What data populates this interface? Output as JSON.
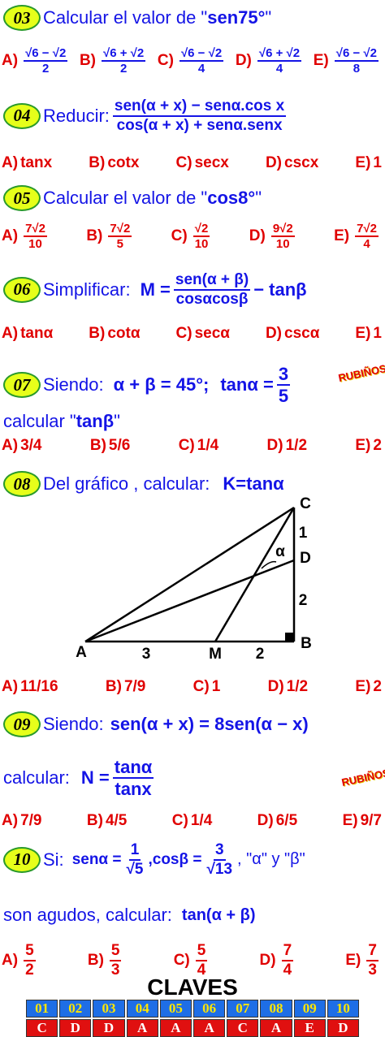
{
  "problems": [
    {
      "number": "03",
      "prompt": [
        "Calcular el valor de \"",
        "sen75°",
        "\""
      ],
      "options": [
        {
          "label": "A)",
          "num": "√6 − √2",
          "den": "2"
        },
        {
          "label": "B)",
          "num": "√6 + √2",
          "den": "2"
        },
        {
          "label": "C)",
          "num": "√6 − √2",
          "den": "4"
        },
        {
          "label": "D)",
          "num": "√6 + √2",
          "den": "4"
        },
        {
          "label": "E)",
          "num": "√6 − √2",
          "den": "8"
        }
      ]
    },
    {
      "number": "04",
      "prompt": [
        "Reducir:",
        "sen(α + x) − senα.cos x",
        "cos(α + x) + senα.senx"
      ],
      "options": [
        {
          "label": "A)",
          "text": "tanx"
        },
        {
          "label": "B)",
          "text": "cotx"
        },
        {
          "label": "C)",
          "text": "secx"
        },
        {
          "label": "D)",
          "text": "cscx"
        },
        {
          "label": "E)",
          "text": "1"
        }
      ]
    },
    {
      "number": "05",
      "prompt": [
        "Calcular el valor de \"",
        "cos8°",
        "\""
      ],
      "options": [
        {
          "label": "A)",
          "num": "7√2",
          "den": "10"
        },
        {
          "label": "B)",
          "num": "7√2",
          "den": "5"
        },
        {
          "label": "C)",
          "num": "√2",
          "den": "10"
        },
        {
          "label": "D)",
          "num": "9√2",
          "den": "10"
        },
        {
          "label": "E)",
          "num": "7√2",
          "den": "4"
        }
      ]
    },
    {
      "number": "06",
      "prompt": [
        "Simplificar:",
        "M =",
        "sen(α + β)",
        "cosαcosβ",
        "− tanβ"
      ],
      "options": [
        {
          "label": "A)",
          "text": "tanα"
        },
        {
          "label": "B)",
          "text": "cotα"
        },
        {
          "label": "C)",
          "text": "secα"
        },
        {
          "label": "D)",
          "text": "cscα"
        },
        {
          "label": "E)",
          "text": "1"
        }
      ]
    },
    {
      "number": "07",
      "prompt": [
        "Siendo:",
        "α + β = 45°;",
        "tanα =",
        "3",
        "5",
        "calcular \"",
        "tanβ",
        "\""
      ],
      "options": [
        {
          "label": "A)",
          "text": "3/4"
        },
        {
          "label": "B)",
          "text": "5/6"
        },
        {
          "label": "C)",
          "text": "1/4"
        },
        {
          "label": "D)",
          "text": "1/2"
        },
        {
          "label": "E)",
          "text": "2"
        }
      ]
    },
    {
      "number": "08",
      "prompt": [
        "Del gráfico , calcular:",
        "K=tanα"
      ],
      "diagram": {
        "points": [
          "A",
          "M",
          "B",
          "C",
          "D"
        ],
        "lengths": [
          "3",
          "2",
          "1",
          "2"
        ],
        "angle": "α"
      },
      "options": [
        {
          "label": "A)",
          "text": "11/16"
        },
        {
          "label": "B)",
          "text": "7/9"
        },
        {
          "label": "C)",
          "text": "1"
        },
        {
          "label": "D)",
          "text": "1/2"
        },
        {
          "label": "E)",
          "text": "2"
        }
      ]
    },
    {
      "number": "09",
      "prompt": [
        "Siendo:",
        "sen(α + x) = 8sen(α − x)",
        "calcular:",
        "N =",
        "tanα",
        "tanx"
      ],
      "options": [
        {
          "label": "A)",
          "text": "7/9"
        },
        {
          "label": "B)",
          "text": "4/5"
        },
        {
          "label": "C)",
          "text": "1/4"
        },
        {
          "label": "D)",
          "text": "6/5"
        },
        {
          "label": "E)",
          "text": "9/7"
        }
      ]
    },
    {
      "number": "10",
      "prompt": [
        "Si:",
        "senα =",
        "1",
        "√5",
        ",cosβ =",
        "3",
        "√13",
        ", \"α\" y \"β\"",
        "son agudos, calcular:",
        "tan(α + β)"
      ],
      "options": [
        {
          "label": "A)",
          "num": "5",
          "den": "2"
        },
        {
          "label": "B)",
          "num": "5",
          "den": "3"
        },
        {
          "label": "C)",
          "num": "5",
          "den": "4"
        },
        {
          "label": "D)",
          "num": "7",
          "den": "4"
        },
        {
          "label": "E)",
          "num": "7",
          "den": "3"
        }
      ]
    }
  ],
  "logos": [
    "RUBIÑOS",
    "RUBIÑOS"
  ],
  "claves": {
    "title": "CLAVES",
    "numbers": [
      "01",
      "02",
      "03",
      "04",
      "05",
      "06",
      "07",
      "08",
      "09",
      "10"
    ],
    "answers": [
      "C",
      "D",
      "D",
      "A",
      "A",
      "A",
      "C",
      "A",
      "E",
      "D"
    ]
  }
}
